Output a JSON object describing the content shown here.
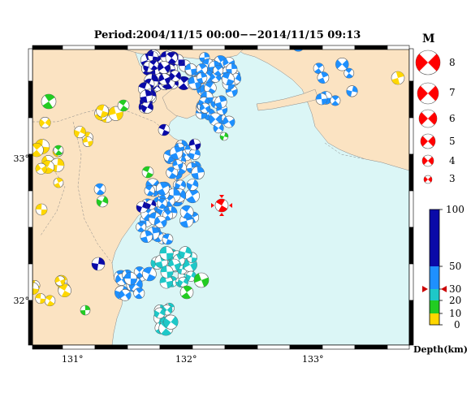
{
  "title": "Period:2004/11/15 00:00−−2014/11/15 09:13",
  "axes": {
    "x_ticks": [
      "131°",
      "132°",
      "133°"
    ],
    "y_ticks": [
      "33°",
      "32°"
    ]
  },
  "magnitude_legend": {
    "title": "M",
    "labels": [
      "8",
      "7",
      "6",
      "5",
      "4",
      "3"
    ]
  },
  "depth_legend": {
    "title": "Depth(km)",
    "labels": [
      "100",
      "50",
      "30",
      "20",
      "10",
      "0"
    ]
  },
  "colors": {
    "land": "#fbe3c2",
    "sea": "#dbf6f6",
    "mainshock": "#ff0000",
    "depth_0_10": "#ffd700",
    "depth_10_20": "#22cc22",
    "depth_20_30": "#1ec8c8",
    "depth_30_50": "#1e90ff",
    "depth_50_100": "#0a0aa8"
  }
}
